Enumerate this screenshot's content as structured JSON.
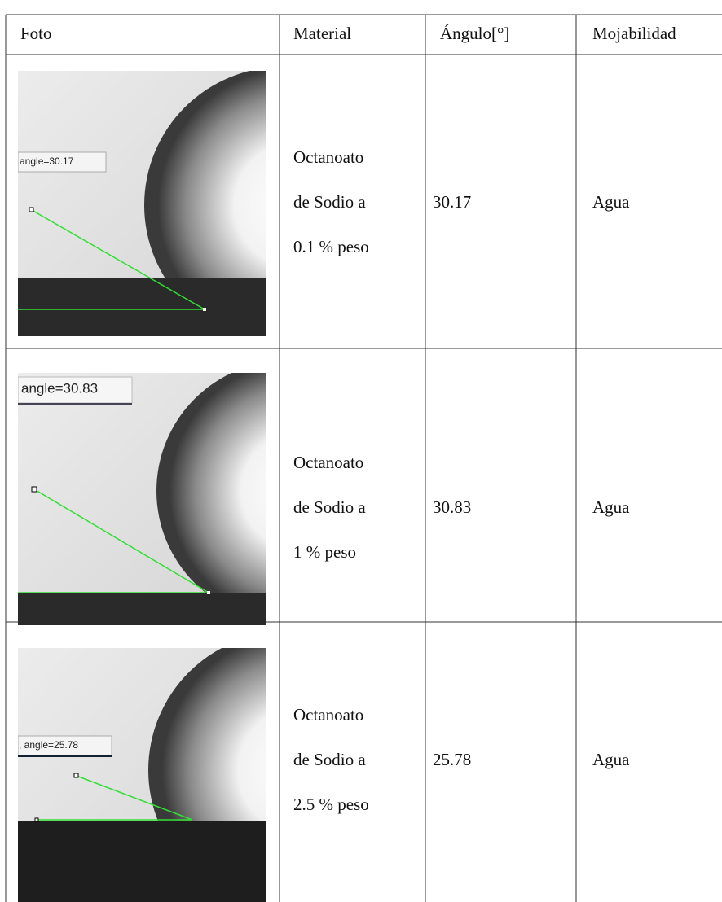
{
  "table": {
    "header": [
      "Foto",
      "Material",
      "Ángulo[°]",
      "Mojabilidad"
    ],
    "rows": [
      {
        "photo_label": "angle=30.17",
        "material": [
          "Octanoato",
          "de Sodio a",
          "0.1 % peso"
        ],
        "angle": "30.17",
        "wettability": "Agua"
      },
      {
        "photo_label": "angle=30.83",
        "material": [
          "Octanoato",
          "de Sodio a",
          "1 % peso"
        ],
        "angle": "30.83",
        "wettability": "Agua"
      },
      {
        "photo_label": ", angle=25.78",
        "material": [
          "Octanoato",
          "de Sodio a",
          "2.5 % peso"
        ],
        "angle": "25.78",
        "wettability": "Agua"
      }
    ]
  }
}
